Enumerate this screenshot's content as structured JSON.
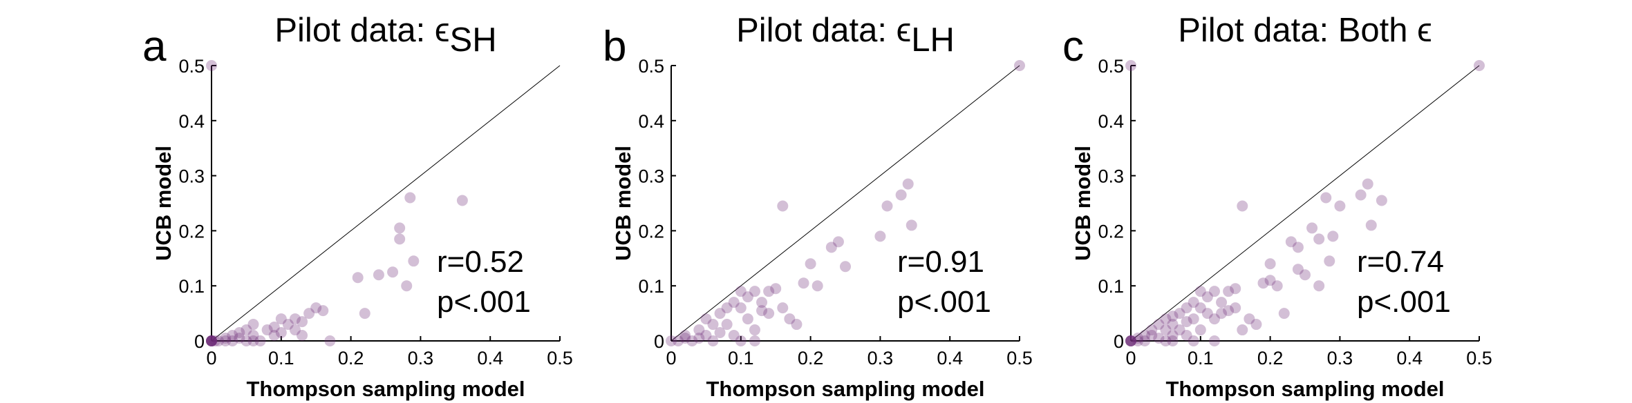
{
  "colors": {
    "point": "#6d2a78",
    "axis": "#000000",
    "diagonal": "#000000"
  },
  "panels": [
    {
      "letter": "a",
      "title": {
        "prefix": "Pilot data: ",
        "symbol": "ϵ",
        "subscript": "SH",
        "suffix": ""
      },
      "xlabel": "Thompson sampling model",
      "ylabel": "UCB model",
      "xticks": [
        "0",
        "0.1",
        "0.2",
        "0.3",
        "0.4",
        "0.5"
      ],
      "yticks": [
        "0",
        "0.1",
        "0.2",
        "0.3",
        "0.4",
        "0.5"
      ],
      "r_text": "r=0.52",
      "p_text": "p<.001"
    },
    {
      "letter": "b",
      "title": {
        "prefix": "Pilot data: ",
        "symbol": "ϵ",
        "subscript": "LH",
        "suffix": ""
      },
      "xlabel": "Thompson sampling model",
      "ylabel": "UCB model",
      "xticks": [
        "0",
        "0.1",
        "0.2",
        "0.3",
        "0.4",
        "0.5"
      ],
      "yticks": [
        "0",
        "0.1",
        "0.2",
        "0.3",
        "0.4",
        "0.5"
      ],
      "r_text": "r=0.91",
      "p_text": "p<.001"
    },
    {
      "letter": "c",
      "title": {
        "prefix": "Pilot data: Both ",
        "symbol": "ϵ",
        "subscript": "",
        "suffix": ""
      },
      "xlabel": "Thompson sampling model",
      "ylabel": "UCB model",
      "xticks": [
        "0",
        "0.1",
        "0.2",
        "0.3",
        "0.4",
        "0.5"
      ],
      "yticks": [
        "0",
        "0.1",
        "0.2",
        "0.3",
        "0.4",
        "0.5"
      ],
      "r_text": "r=0.74",
      "p_text": "p<.001"
    }
  ],
  "chart_data": [
    {
      "type": "scatter",
      "title": "Pilot data: ϵSH",
      "xlabel": "Thompson sampling model",
      "ylabel": "UCB model",
      "xlim": [
        0,
        0.5
      ],
      "ylim": [
        0,
        0.5
      ],
      "reference_line": "y = x",
      "annotations": [
        "r=0.52",
        "p<.001"
      ],
      "x": [
        0,
        0,
        0,
        0,
        0,
        0,
        0,
        0,
        0.01,
        0.02,
        0.02,
        0.03,
        0.03,
        0.04,
        0.04,
        0.05,
        0.05,
        0.06,
        0.06,
        0.07,
        0.08,
        0.09,
        0.09,
        0.1,
        0.11,
        0.12,
        0.12,
        0.13,
        0.13,
        0.14,
        0.15,
        0.16,
        0.17,
        0.21,
        0.22,
        0.24,
        0.26,
        0.27,
        0.27,
        0.28,
        0.285,
        0.29,
        0.36,
        0.06,
        0.1,
        0.005
      ],
      "y": [
        0.5,
        0,
        0,
        0,
        0,
        0,
        0,
        0,
        0,
        0,
        0.005,
        0,
        0.01,
        0.005,
        0.015,
        0.02,
        0,
        0.01,
        0.03,
        0,
        0.02,
        0.01,
        0.025,
        0.04,
        0.03,
        0.04,
        0.02,
        0.035,
        0.01,
        0.05,
        0.06,
        0.055,
        0,
        0.115,
        0.05,
        0.12,
        0.125,
        0.205,
        0.185,
        0.1,
        0.26,
        0.145,
        0.255,
        0,
        0.015,
        0
      ],
      "grid": false,
      "legend": "none"
    },
    {
      "type": "scatter",
      "title": "Pilot data: ϵLH",
      "xlabel": "Thompson sampling model",
      "ylabel": "UCB model",
      "xlim": [
        0,
        0.5
      ],
      "ylim": [
        0,
        0.5
      ],
      "reference_line": "y = x",
      "annotations": [
        "r=0.91",
        "p<.001"
      ],
      "x": [
        0,
        0.01,
        0.02,
        0.03,
        0.04,
        0.05,
        0.05,
        0.06,
        0.06,
        0.07,
        0.07,
        0.08,
        0.08,
        0.09,
        0.09,
        0.1,
        0.1,
        0.11,
        0.11,
        0.12,
        0.12,
        0.13,
        0.13,
        0.14,
        0.14,
        0.15,
        0.16,
        0.16,
        0.17,
        0.18,
        0.19,
        0.2,
        0.21,
        0.23,
        0.24,
        0.25,
        0.3,
        0.31,
        0.33,
        0.34,
        0.345,
        0.5,
        0.04,
        0.02,
        0.1,
        0.12
      ],
      "y": [
        0,
        0,
        0.01,
        0,
        0.02,
        0.04,
        0.01,
        0.03,
        0,
        0.05,
        0.015,
        0.06,
        0.03,
        0.07,
        0.01,
        0.09,
        0.06,
        0.08,
        0.04,
        0.09,
        0.02,
        0.07,
        0.055,
        0.09,
        0.05,
        0.095,
        0.245,
        0.06,
        0.04,
        0.03,
        0.105,
        0.14,
        0.1,
        0.17,
        0.18,
        0.135,
        0.19,
        0.245,
        0.265,
        0.285,
        0.21,
        0.5,
        0.005,
        0.005,
        0.0,
        0.0
      ],
      "grid": false,
      "legend": "none"
    },
    {
      "type": "scatter",
      "title": "Pilot data: Both ϵ",
      "xlabel": "Thompson sampling model",
      "ylabel": "UCB model",
      "xlim": [
        0,
        0.5
      ],
      "ylim": [
        0,
        0.5
      ],
      "reference_line": "y = x",
      "annotations": [
        "r=0.74",
        "p<.001"
      ],
      "x": [
        0,
        0,
        0,
        0,
        0,
        0,
        0.01,
        0.01,
        0.02,
        0.02,
        0.03,
        0.03,
        0.04,
        0.04,
        0.05,
        0.05,
        0.05,
        0.06,
        0.06,
        0.06,
        0.07,
        0.07,
        0.08,
        0.08,
        0.08,
        0.09,
        0.09,
        0.1,
        0.1,
        0.1,
        0.11,
        0.11,
        0.12,
        0.12,
        0.13,
        0.13,
        0.14,
        0.14,
        0.15,
        0.15,
        0.16,
        0.16,
        0.17,
        0.18,
        0.19,
        0.2,
        0.2,
        0.21,
        0.22,
        0.23,
        0.24,
        0.24,
        0.25,
        0.26,
        0.27,
        0.27,
        0.28,
        0.285,
        0.29,
        0.3,
        0.33,
        0.34,
        0.345,
        0.36,
        0.5,
        0.06,
        0.09,
        0.12
      ],
      "y": [
        0.5,
        0,
        0,
        0,
        0,
        0,
        0,
        0.005,
        0.01,
        0,
        0.01,
        0.02,
        0.03,
        0.005,
        0.04,
        0.02,
        0,
        0.03,
        0.01,
        0.045,
        0.05,
        0.02,
        0.06,
        0.035,
        0.01,
        0.07,
        0.04,
        0.09,
        0.06,
        0.02,
        0.08,
        0.05,
        0.09,
        0.04,
        0.07,
        0.05,
        0.09,
        0.055,
        0.095,
        0.06,
        0.245,
        0.02,
        0.04,
        0.03,
        0.105,
        0.14,
        0.11,
        0.1,
        0.05,
        0.18,
        0.17,
        0.13,
        0.12,
        0.205,
        0.185,
        0.1,
        0.26,
        0.145,
        0.19,
        0.245,
        0.265,
        0.285,
        0.21,
        0.255,
        0.5,
        0.0,
        0.0,
        0.0
      ],
      "grid": false,
      "legend": "none"
    }
  ]
}
